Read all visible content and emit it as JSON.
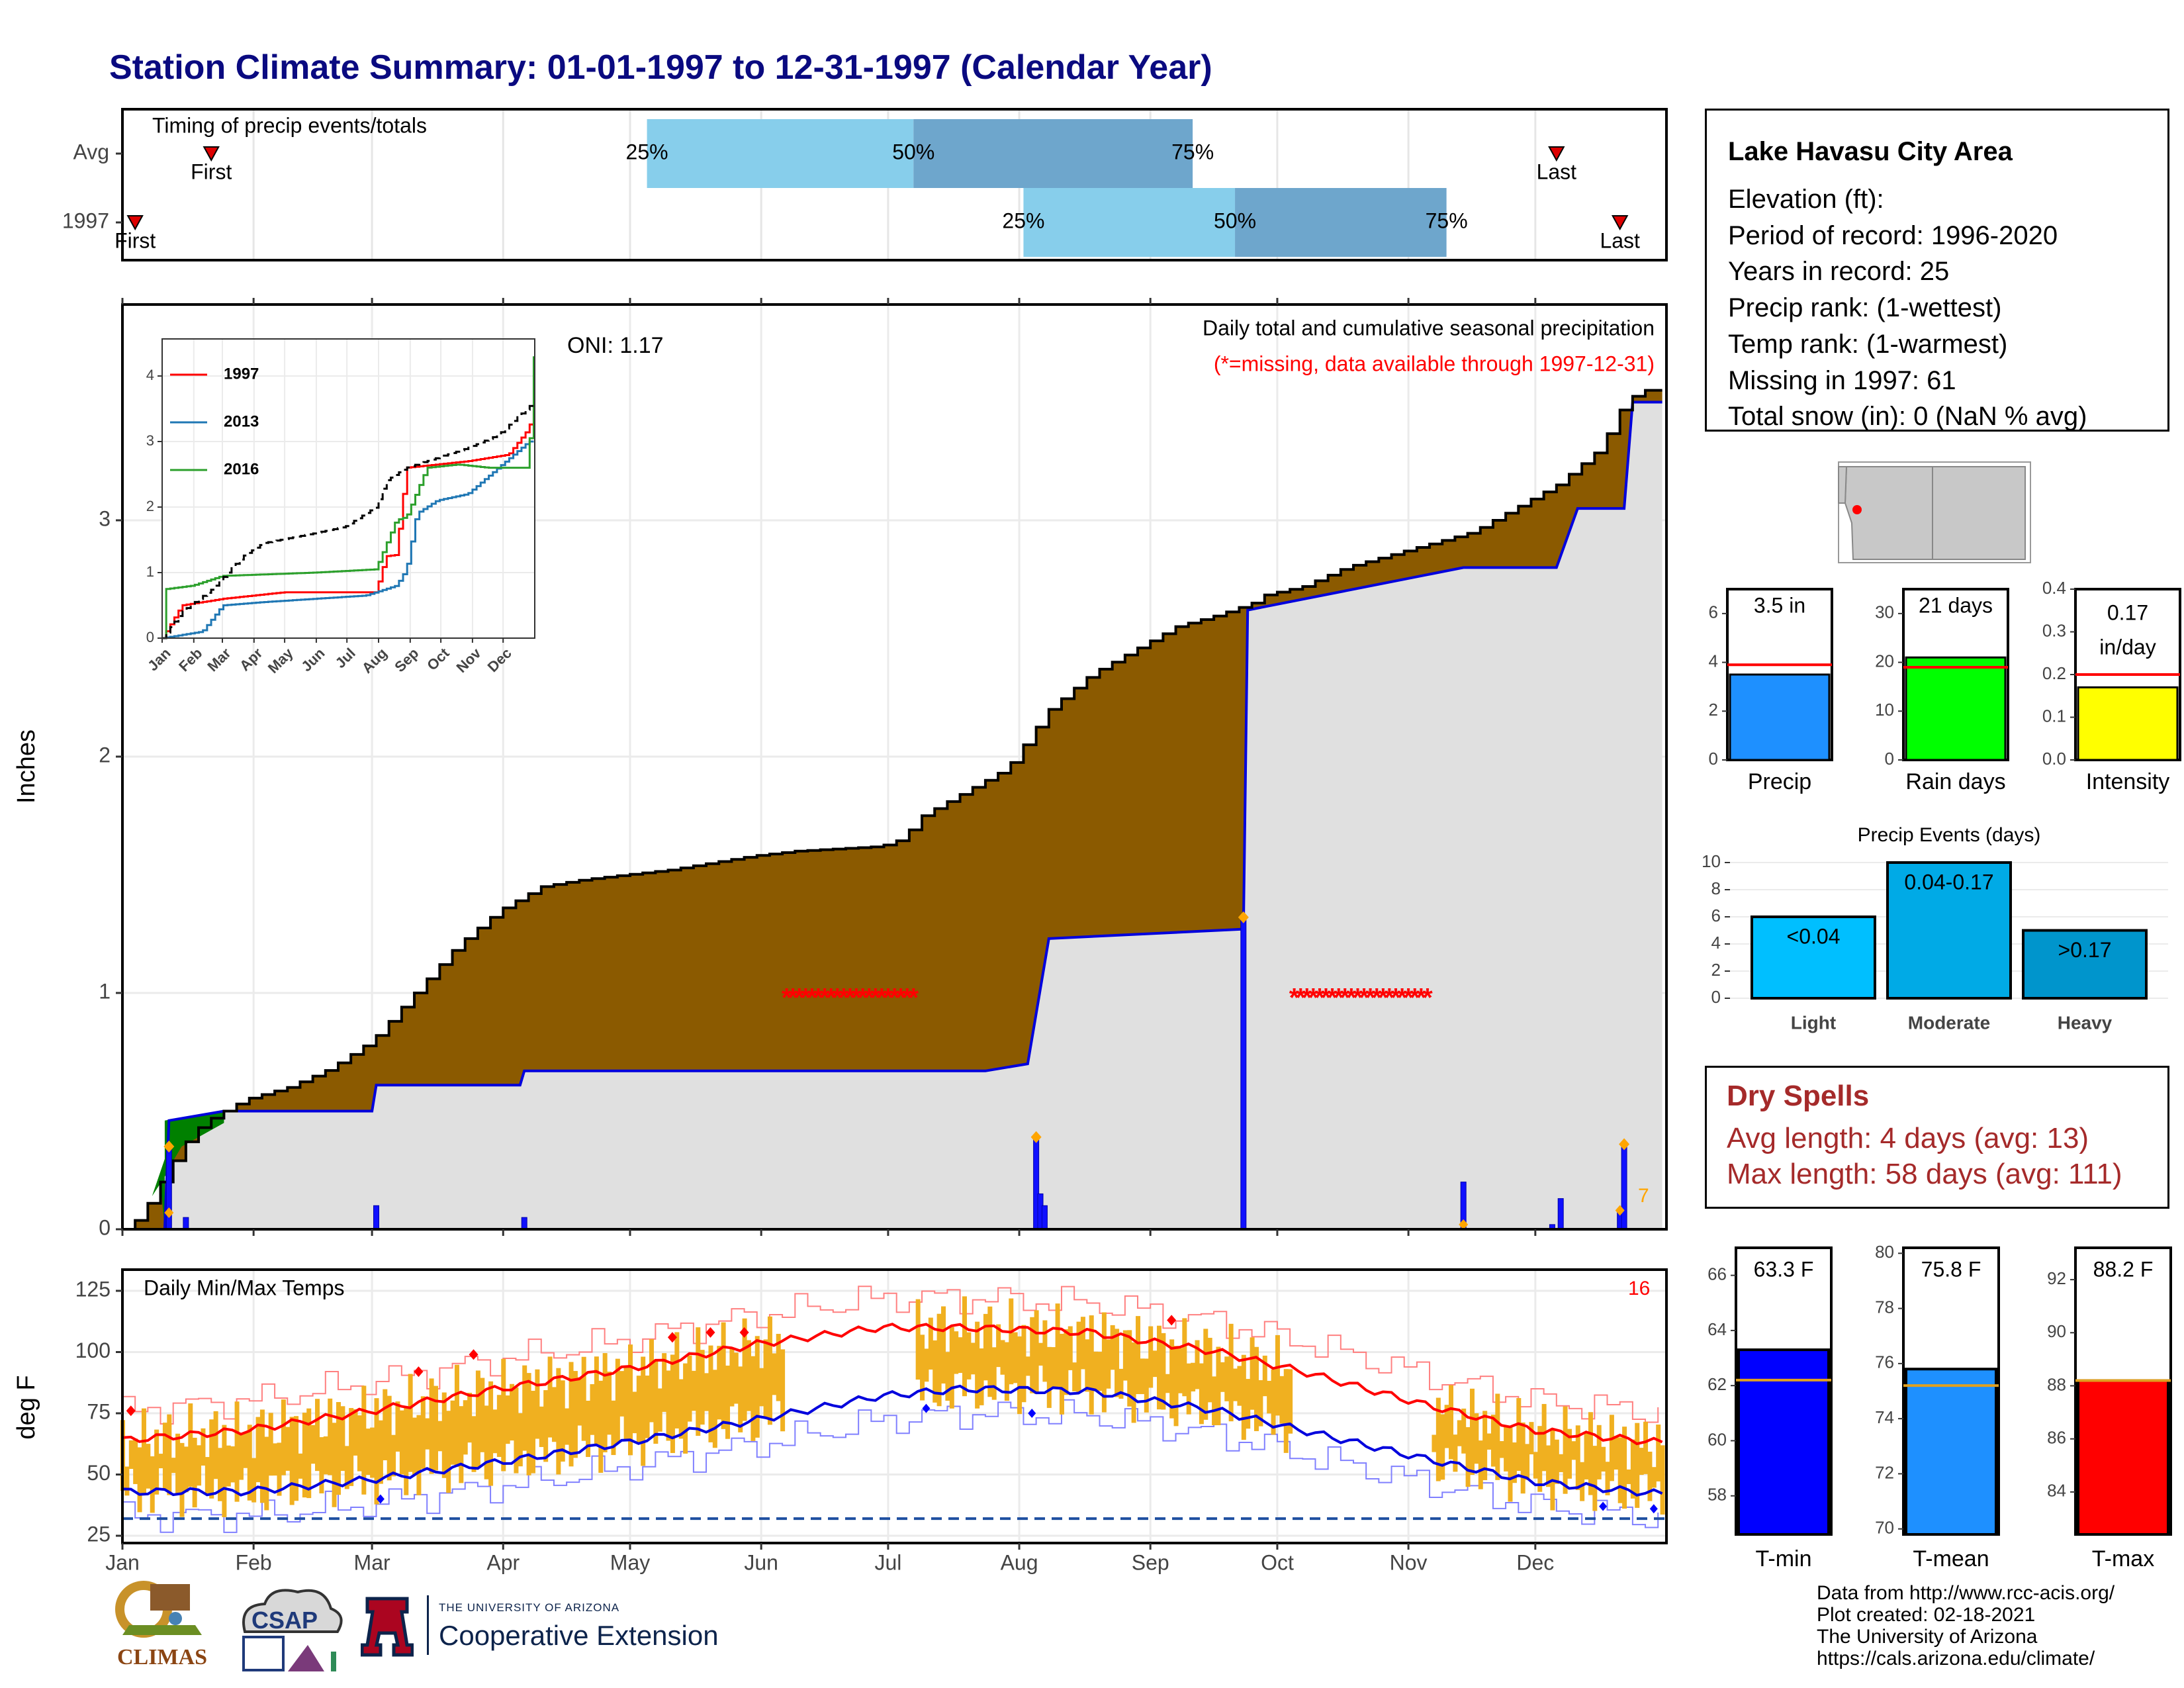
{
  "title": "Station Climate Summary: 01-01-1997 to 12-31-1997 (Calendar Year)",
  "colors": {
    "title": "#0a0a80",
    "q_light": "#87ceeb",
    "q_dark": "#6ea6cc",
    "cumulative_obs": "#8b5a00",
    "cumulative_wet": "#008000",
    "avg_fill": "#e0e0e0",
    "daily_bar": "#1010ff",
    "temp_band": "#f0b020",
    "tmax_avg": "#ff0000",
    "tmin_avg": "#0000dd",
    "missing": "#ff0000",
    "dry_text": "#a52a2a"
  },
  "timing_panel": {
    "title": "Timing of precip events/totals",
    "rows": [
      "Avg",
      "1997"
    ],
    "avg": {
      "first_label": "First",
      "last_label": "Last",
      "first_doy": 22,
      "last_doy": 340,
      "q25_doy": 125,
      "q50_doy": 188,
      "q75_doy": 254,
      "labels": [
        "25%",
        "50%",
        "75%"
      ]
    },
    "year": {
      "first_label": "First",
      "last_label": "Last",
      "first_doy": 4,
      "last_doy": 355,
      "q25_doy": 214,
      "q50_doy": 264,
      "q75_doy": 314,
      "labels": [
        "25%",
        "50%",
        "75%"
      ]
    }
  },
  "precip_panel": {
    "ylabel": "Inches",
    "oni_label": "ONI: 1.17",
    "note1": "Daily total and cumulative seasonal precipitation",
    "note2": "(*=missing, data available through 1997-12-31)",
    "corner_count": "7",
    "yticks": [
      "0",
      "1",
      "2",
      "3"
    ],
    "xticks": [
      "Jan",
      "Feb",
      "Mar",
      "Apr",
      "May",
      "Jun",
      "Jul",
      "Aug",
      "Sep",
      "Oct",
      "Nov",
      "Dec"
    ]
  },
  "inset": {
    "legend": [
      "1997",
      "2013",
      "2016"
    ],
    "legend_colors": [
      "#ff0000",
      "#1f77b4",
      "#2ca02c"
    ],
    "yticks": [
      "0",
      "1",
      "2",
      "3",
      "4"
    ],
    "xticks": [
      "Jan",
      "Feb",
      "Mar",
      "Apr",
      "May",
      "Jun",
      "Jul",
      "Aug",
      "Sep",
      "Oct",
      "Nov",
      "Dec"
    ]
  },
  "temp_panel": {
    "label": "Daily Min/Max Temps",
    "ylabel": "deg F",
    "corner_count": "16",
    "yticks": [
      "25",
      "50",
      "75",
      "100",
      "125"
    ],
    "xticks": [
      "Jan",
      "Feb",
      "Mar",
      "Apr",
      "May",
      "Jun",
      "Jul",
      "Aug",
      "Sep",
      "Oct",
      "Nov",
      "Dec"
    ]
  },
  "station_info": {
    "name": "Lake Havasu City Area",
    "lines": [
      "Elevation (ft):",
      "Period of record: 1996-2020",
      "Years in record: 25",
      "Precip rank:  (1-wettest)",
      "Temp rank:  (1-warmest)",
      "Missing in 1997: 61",
      "Total snow (in): 0 (NaN % avg)"
    ]
  },
  "summary_bars": [
    {
      "label": "Precip",
      "value_label": "3.5 in",
      "value": 3.5,
      "avg": 3.9,
      "ymax": 7,
      "yticks": [
        "0",
        "2",
        "4",
        "6"
      ],
      "ytick_vals": [
        0,
        2,
        4,
        6
      ],
      "color": "#1e90ff"
    },
    {
      "label": "Rain days",
      "value_label": "21 days",
      "value": 21,
      "avg": 19,
      "ymax": 35,
      "yticks": [
        "0",
        "10",
        "20",
        "30"
      ],
      "ytick_vals": [
        0,
        10,
        20,
        30
      ],
      "color": "#00ff00"
    },
    {
      "label": "Intensity",
      "value_label": "0.17 in/day",
      "value": 0.17,
      "avg": 0.2,
      "ymax": 0.4,
      "yticks": [
        "0.0",
        "0.1",
        "0.2",
        "0.3",
        "0.4"
      ],
      "ytick_vals": [
        0,
        0.1,
        0.2,
        0.3,
        0.4
      ],
      "color": "#ffff00"
    }
  ],
  "precip_events": {
    "title": "Precip Events (days)",
    "yticks": [
      "0",
      "2",
      "4",
      "6",
      "8",
      "10"
    ],
    "categories": [
      "Light",
      "Moderate",
      "Heavy"
    ],
    "bar_labels": [
      "<0.04",
      "0.04-0.17",
      ">0.17"
    ],
    "values": [
      6,
      10,
      5
    ],
    "colors": [
      "#00bfff",
      "#00aae6",
      "#0095cc"
    ]
  },
  "dry_spells": {
    "title": "Dry Spells",
    "avg_length": "Avg length: 4 days (avg: 13)",
    "max_length": "Max length: 58 days (avg: 111)"
  },
  "temp_bars": [
    {
      "label": "T-min",
      "value_label": "63.3 F",
      "value": 63.3,
      "avg": 62.2,
      "ymin": 56.6,
      "ymax": 67,
      "yticks": [
        "58",
        "60",
        "62",
        "64",
        "66"
      ],
      "ytick_vals": [
        58,
        60,
        62,
        64,
        66
      ],
      "color": "#0000ff"
    },
    {
      "label": "T-mean",
      "value_label": "75.8 F",
      "value": 75.8,
      "avg": 75.2,
      "ymin": 69.8,
      "ymax": 80.2,
      "yticks": [
        "70",
        "72",
        "74",
        "76",
        "78",
        "80"
      ],
      "ytick_vals": [
        70,
        72,
        74,
        76,
        78,
        80
      ],
      "color": "#1e90ff"
    },
    {
      "label": "T-max",
      "value_label": "88.2 F",
      "value": 88.2,
      "avg": 88.2,
      "ymin": 82.4,
      "ymax": 93.2,
      "yticks": [
        "84",
        "86",
        "88",
        "90",
        "92"
      ],
      "ytick_vals": [
        84,
        86,
        88,
        90,
        92
      ],
      "color": "#ff0000"
    }
  ],
  "footer": {
    "lines": [
      "Data from http://www.rcc-acis.org/",
      "Plot created: 02-18-2021",
      "The University of Arizona",
      "https://cals.arizona.edu/climate/"
    ],
    "logo_climas": "CLIMAS",
    "logo_csap": "CSAP",
    "ua_line1": "THE UNIVERSITY OF ARIZONA",
    "ua_line2": "Cooperative Extension"
  },
  "chart_data": [
    {
      "type": "area",
      "title": "Daily total and cumulative seasonal precipitation",
      "ylabel": "Inches",
      "ylim": [
        0,
        3.9
      ],
      "x_unit": "day of year",
      "observed_cumulative_1997": {
        "x": [
          1,
          5,
          10,
          15,
          20,
          25,
          30,
          40,
          50,
          60,
          70,
          80,
          90,
          100,
          110,
          120,
          130,
          140,
          150,
          160,
          170,
          180,
          185,
          190,
          200,
          210,
          220,
          230,
          240,
          250,
          260,
          268,
          270,
          280,
          290,
          300,
          310,
          320,
          330,
          340,
          350,
          356,
          360,
          365
        ],
        "values": [
          0.0,
          0.05,
          0.2,
          0.35,
          0.45,
          0.5,
          0.55,
          0.6,
          0.68,
          0.8,
          1.0,
          1.2,
          1.35,
          1.45,
          1.48,
          1.5,
          1.52,
          1.55,
          1.58,
          1.6,
          1.61,
          1.62,
          1.65,
          1.75,
          1.85,
          1.95,
          2.2,
          2.35,
          2.45,
          2.55,
          2.6,
          2.65,
          2.68,
          2.72,
          2.8,
          2.85,
          2.9,
          2.95,
          3.05,
          3.15,
          3.3,
          3.5,
          3.55,
          3.55
        ]
      },
      "average_cumulative": {
        "x": [
          1,
          11,
          12,
          25,
          60,
          61,
          95,
          96,
          205,
          215,
          220,
          266,
          267,
          318,
          340,
          345,
          356,
          358,
          365
        ],
        "values": [
          0.0,
          0.0,
          0.46,
          0.5,
          0.5,
          0.61,
          0.61,
          0.67,
          0.67,
          0.7,
          1.23,
          1.27,
          2.62,
          2.8,
          2.8,
          3.05,
          3.05,
          3.5,
          3.5
        ]
      },
      "daily_precip_1997": {
        "x": [
          12,
          16,
          61,
          96,
          217,
          218,
          219,
          266,
          318,
          339,
          341,
          355,
          356
        ],
        "values": [
          0.35,
          0.05,
          0.1,
          0.05,
          0.39,
          0.15,
          0.1,
          1.32,
          0.2,
          0.02,
          0.13,
          0.08,
          0.36
        ]
      },
      "missing_periods": [
        [
          158,
          188
        ],
        [
          278,
          310
        ]
      ]
    },
    {
      "type": "line",
      "title": "",
      "ylim": [
        0,
        4.6
      ],
      "series": [
        {
          "name": "1997",
          "x": [
            1,
            20,
            40,
            60,
            90,
            120,
            150,
            180,
            210,
            220,
            230,
            240,
            270,
            300,
            340,
            360,
            365
          ],
          "values": [
            0.0,
            0.5,
            0.55,
            0.6,
            0.65,
            0.7,
            0.7,
            0.7,
            0.7,
            1.25,
            1.27,
            2.6,
            2.65,
            2.7,
            2.8,
            3.2,
            3.5
          ]
        },
        {
          "name": "2013",
          "x": [
            1,
            40,
            60,
            100,
            150,
            200,
            230,
            240,
            250,
            270,
            300,
            330,
            360,
            365
          ],
          "values": [
            0.0,
            0.1,
            0.5,
            0.55,
            0.6,
            0.65,
            0.8,
            1.05,
            1.9,
            2.1,
            2.2,
            2.6,
            3.0,
            3.0
          ]
        },
        {
          "name": "2016",
          "x": [
            1,
            5,
            30,
            60,
            150,
            210,
            230,
            240,
            260,
            290,
            320,
            350,
            360,
            362,
            365
          ],
          "values": [
            0.0,
            0.75,
            0.8,
            0.95,
            1.0,
            1.05,
            1.8,
            1.85,
            2.6,
            2.65,
            2.6,
            2.6,
            2.6,
            3.5,
            4.3
          ]
        },
        {
          "name": "",
          "x": [
            1,
            20,
            50,
            80,
            100,
            150,
            180,
            210,
            220,
            240,
            260,
            300,
            330,
            365
          ],
          "values": [
            0.0,
            0.4,
            0.75,
            1.25,
            1.45,
            1.6,
            1.7,
            2.0,
            2.4,
            2.6,
            2.7,
            2.9,
            3.1,
            3.6
          ]
        }
      ],
      "ylabel": "",
      "xlabel": ""
    },
    {
      "type": "line",
      "title": "Daily Min/Max Temps",
      "ylabel": "deg F",
      "ylim": [
        25,
        132
      ],
      "series": [
        {
          "name": "",
          "x": [
            1,
            30,
            60,
            90,
            120,
            150,
            180,
            200,
            230,
            260,
            280,
            310,
            335,
            365
          ],
          "values": [
            64,
            68,
            76,
            85,
            93,
            103,
            110,
            110,
            108,
            100,
            92,
            78,
            68,
            63
          ]
        },
        {
          "name": "",
          "x": [
            1,
            30,
            60,
            90,
            120,
            150,
            180,
            200,
            230,
            260,
            280,
            310,
            335,
            365
          ],
          "values": [
            43,
            43,
            48,
            55,
            63,
            72,
            82,
            85,
            84,
            76,
            68,
            56,
            47,
            42
          ]
        }
      ],
      "band_missing_periods": [
        [
          158,
          188
        ],
        [
          278,
          310
        ]
      ],
      "dashed_reference": 32
    },
    {
      "type": "bar",
      "title": "",
      "categories": [
        "Precip"
      ],
      "values": [
        3.5
      ],
      "average": 3.9,
      "ylim": [
        0,
        7
      ]
    },
    {
      "type": "bar",
      "title": "",
      "categories": [
        "Rain days"
      ],
      "values": [
        21
      ],
      "average": 19,
      "ylim": [
        0,
        35
      ]
    },
    {
      "type": "bar",
      "title": "",
      "categories": [
        "Intensity"
      ],
      "values": [
        0.17
      ],
      "average": 0.2,
      "ylim": [
        0,
        0.4
      ]
    },
    {
      "type": "bar",
      "title": "Precip Events (days)",
      "categories": [
        "Light",
        "Moderate",
        "Heavy"
      ],
      "values": [
        6,
        10,
        5
      ],
      "ylim": [
        0,
        10.5
      ]
    },
    {
      "type": "bar",
      "title": "",
      "categories": [
        "T-min"
      ],
      "values": [
        63.3
      ],
      "average": 62.2
    },
    {
      "type": "bar",
      "title": "",
      "categories": [
        "T-mean"
      ],
      "values": [
        75.8
      ],
      "average": 75.2
    },
    {
      "type": "bar",
      "title": "",
      "categories": [
        "T-max"
      ],
      "values": [
        88.2
      ],
      "average": 88.2
    }
  ]
}
